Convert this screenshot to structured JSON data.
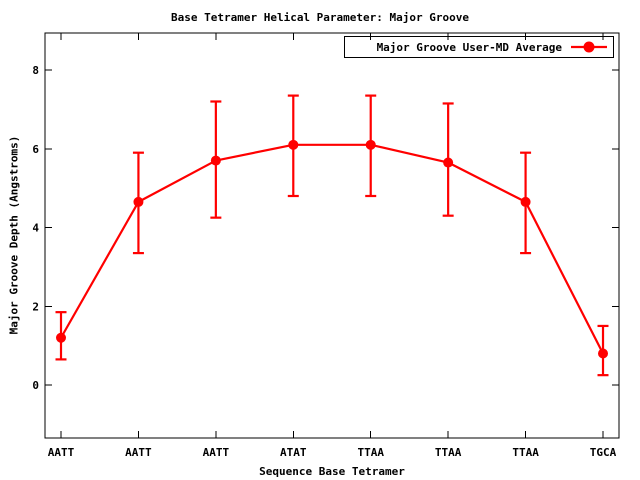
{
  "title": "Base Tetramer Helical Parameter: Major Groove",
  "legend": {
    "label": "Major Groove User-MD Average",
    "position": "top-right"
  },
  "axes": {
    "xlabel": "Sequence Base Tetramer",
    "ylabel": "Major Groove Depth (Angstroms)"
  },
  "colors": {
    "series": "#ff0000",
    "text": "#000000",
    "frame": "#000000",
    "background": "#ffffff"
  },
  "chart_data": {
    "type": "line",
    "title": "Base Tetramer Helical Parameter: Major Groove",
    "xlabel": "Sequence Base Tetramer",
    "ylabel": "Major Groove Depth (Angstroms)",
    "categories": [
      "AATT",
      "AATT",
      "AATT",
      "ATAT",
      "TTAA",
      "TTAA",
      "TTAA",
      "TGCA"
    ],
    "series": [
      {
        "name": "Major Groove User-MD Average",
        "values": [
          1.2,
          4.65,
          5.7,
          6.1,
          6.1,
          5.65,
          4.65,
          0.8
        ],
        "err_low": [
          0.65,
          3.35,
          4.25,
          4.8,
          4.8,
          4.3,
          3.35,
          0.25
        ],
        "err_high": [
          1.85,
          5.9,
          7.2,
          7.35,
          7.35,
          7.15,
          5.9,
          1.5
        ],
        "color": "#ff0000",
        "marker": "filled-circle",
        "error_bars": true
      }
    ],
    "yticks": [
      0,
      2,
      4,
      6,
      8
    ],
    "ylim": [
      -1.35,
      8.95
    ],
    "grid": false,
    "legend_position": "top-right"
  }
}
